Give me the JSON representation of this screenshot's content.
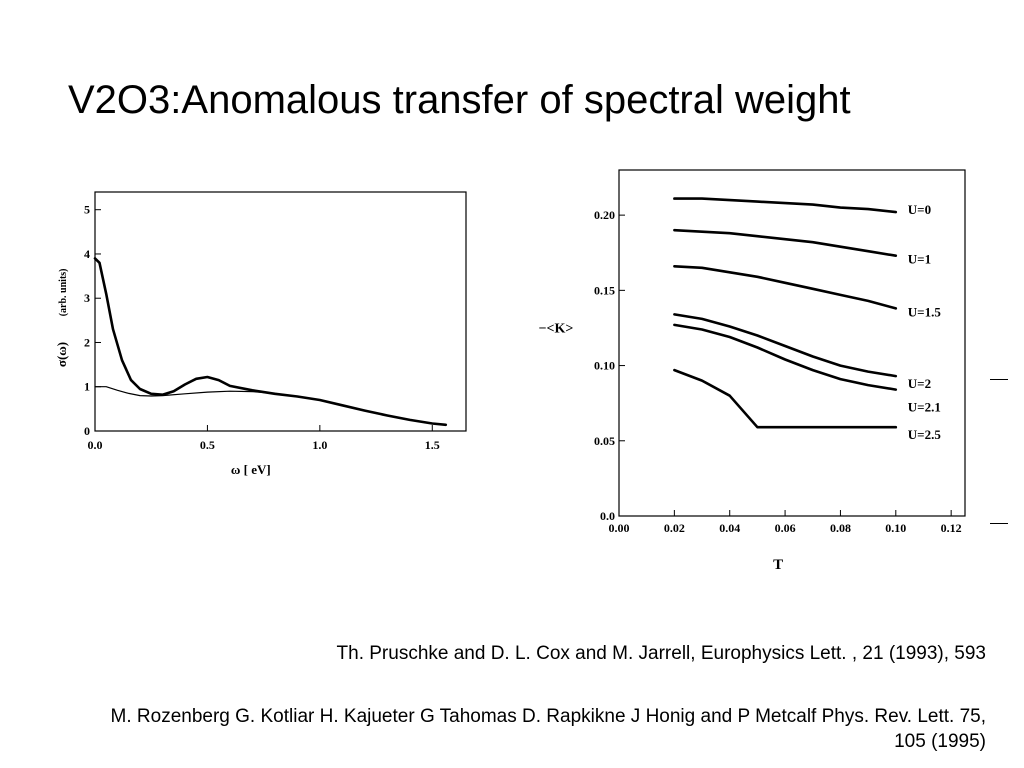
{
  "title": "V2O3:Anomalous transfer of spectral weight",
  "references": [
    "Th. Pruschke and D. L. Cox and M. Jarrell, Europhysics Lett. , 21 (1993), 593",
    "M. Rozenberg G. Kotliar H. Kajueter G Tahomas D. Rapkikne J Honig and P Metcalf Phys. Rev. Lett. 75, 105 (1995)"
  ],
  "chart_data": [
    {
      "type": "line",
      "xlabel": "ω  [ eV]",
      "ylabel": "σ(ω)",
      "ylabel_units": "(arb. units)",
      "xlim": [
        0.0,
        1.65
      ],
      "ylim": [
        0,
        5.4
      ],
      "xticks": [
        "0.0",
        "0.5",
        "1.0",
        "1.5"
      ],
      "xtick_values": [
        0.0,
        0.5,
        1.0,
        1.5
      ],
      "yticks": [
        "0",
        "1",
        "2",
        "3",
        "4",
        "5"
      ],
      "ytick_values": [
        0,
        1,
        2,
        3,
        4,
        5
      ],
      "grid": false,
      "series": [
        {
          "stroke": "thick",
          "x": [
            0.0,
            0.02,
            0.05,
            0.08,
            0.12,
            0.16,
            0.2,
            0.25,
            0.3,
            0.35,
            0.4,
            0.45,
            0.5,
            0.55,
            0.6,
            0.7,
            0.8,
            0.9,
            1.0,
            1.1,
            1.2,
            1.3,
            1.4,
            1.5,
            1.56
          ],
          "y": [
            3.9,
            3.8,
            3.1,
            2.3,
            1.6,
            1.15,
            0.95,
            0.84,
            0.82,
            0.9,
            1.05,
            1.18,
            1.22,
            1.15,
            1.02,
            0.92,
            0.84,
            0.78,
            0.7,
            0.58,
            0.46,
            0.35,
            0.25,
            0.17,
            0.14
          ]
        },
        {
          "stroke": "thin",
          "x": [
            0.0,
            0.05,
            0.1,
            0.15,
            0.2,
            0.25,
            0.3,
            0.4,
            0.5,
            0.6,
            0.7,
            0.8,
            0.9,
            1.0,
            1.1,
            1.2,
            1.3,
            1.4,
            1.5,
            1.56
          ],
          "y": [
            1.0,
            1.0,
            0.92,
            0.85,
            0.8,
            0.79,
            0.8,
            0.84,
            0.88,
            0.9,
            0.89,
            0.85,
            0.78,
            0.7,
            0.58,
            0.46,
            0.35,
            0.25,
            0.17,
            0.14
          ]
        }
      ]
    },
    {
      "type": "line",
      "xlabel": "T",
      "ylabel": "−<K>",
      "xlim": [
        0.0,
        0.125
      ],
      "ylim": [
        0.0,
        0.23
      ],
      "xticks": [
        "0.00",
        "0.02",
        "0.04",
        "0.06",
        "0.08",
        "0.10",
        "0.12"
      ],
      "xtick_values": [
        0.0,
        0.02,
        0.04,
        0.06,
        0.08,
        0.1,
        0.12
      ],
      "yticks": [
        "0.0",
        "0.05",
        "0.10",
        "0.15",
        "0.20"
      ],
      "ytick_values": [
        0.0,
        0.05,
        0.1,
        0.15,
        0.2
      ],
      "grid": false,
      "series": [
        {
          "name": "U=0",
          "x": [
            0.02,
            0.03,
            0.04,
            0.05,
            0.06,
            0.07,
            0.08,
            0.09,
            0.1
          ],
          "y": [
            0.211,
            0.211,
            0.21,
            0.209,
            0.208,
            0.207,
            0.205,
            0.204,
            0.202
          ]
        },
        {
          "name": "U=1",
          "x": [
            0.02,
            0.03,
            0.04,
            0.05,
            0.06,
            0.07,
            0.08,
            0.09,
            0.1
          ],
          "y": [
            0.19,
            0.189,
            0.188,
            0.186,
            0.184,
            0.182,
            0.179,
            0.176,
            0.173
          ]
        },
        {
          "name": "U=1.5",
          "x": [
            0.02,
            0.03,
            0.04,
            0.05,
            0.06,
            0.07,
            0.08,
            0.09,
            0.1
          ],
          "y": [
            0.166,
            0.165,
            0.162,
            0.159,
            0.155,
            0.151,
            0.147,
            0.143,
            0.138
          ]
        },
        {
          "name": "U=2",
          "x": [
            0.02,
            0.03,
            0.04,
            0.05,
            0.06,
            0.07,
            0.08,
            0.09,
            0.1
          ],
          "y": [
            0.134,
            0.131,
            0.126,
            0.12,
            0.113,
            0.106,
            0.1,
            0.096,
            0.093
          ]
        },
        {
          "name": "U=2.1",
          "x": [
            0.02,
            0.03,
            0.04,
            0.05,
            0.06,
            0.07,
            0.08,
            0.09,
            0.1
          ],
          "y": [
            0.127,
            0.124,
            0.119,
            0.112,
            0.104,
            0.097,
            0.091,
            0.087,
            0.084
          ]
        },
        {
          "name": "U=2.5",
          "x": [
            0.02,
            0.03,
            0.04,
            0.05,
            0.06,
            0.07,
            0.08,
            0.09,
            0.1
          ],
          "y": [
            0.097,
            0.09,
            0.08,
            0.059,
            0.059,
            0.059,
            0.059,
            0.059,
            0.059
          ]
        }
      ]
    }
  ]
}
